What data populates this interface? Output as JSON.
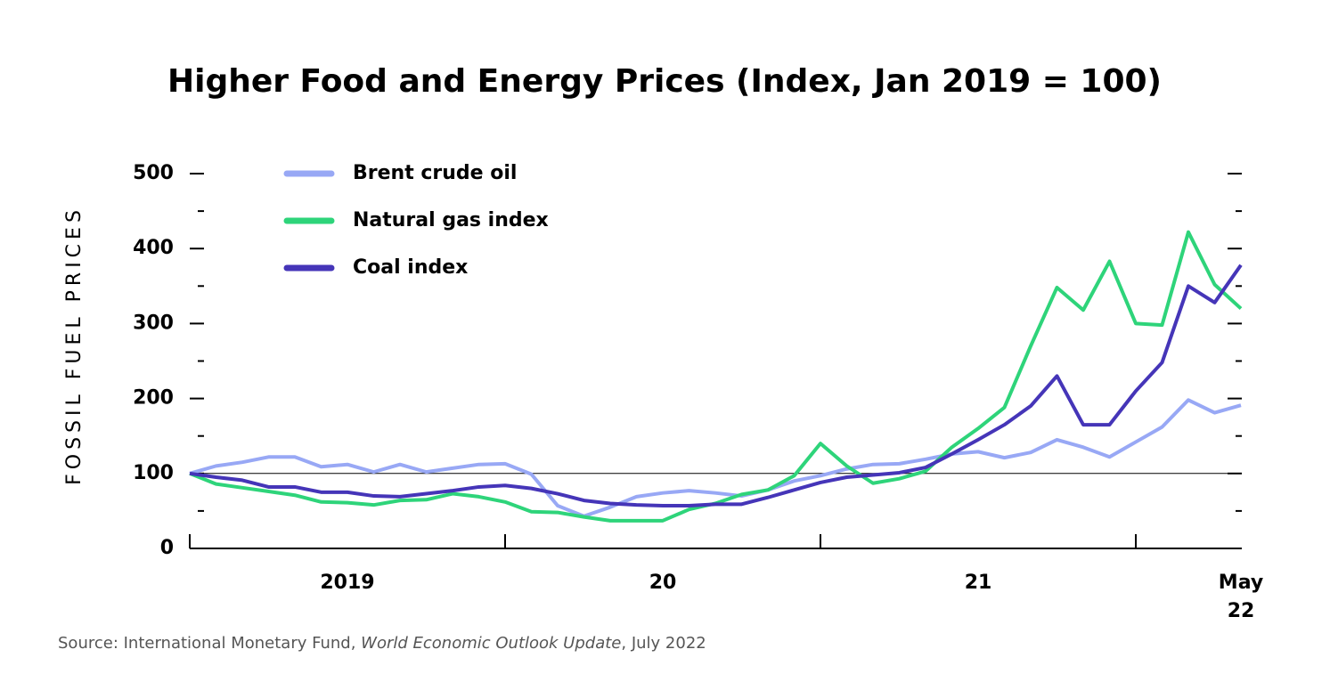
{
  "chart_data": {
    "type": "line",
    "title": "Higher Food and Energy Prices (Index, Jan 2019 = 100)",
    "y_label": "FOSSIL FUEL PRICES",
    "x": [
      0,
      1,
      2,
      3,
      4,
      5,
      6,
      7,
      8,
      9,
      10,
      11,
      12,
      13,
      14,
      15,
      16,
      17,
      18,
      19,
      20,
      21,
      22,
      23,
      24,
      25,
      26,
      27,
      28,
      29,
      30,
      31,
      32,
      33,
      34,
      35,
      36,
      37,
      38,
      39,
      40
    ],
    "series": [
      {
        "name": "Brent crude oil",
        "color": "#98a8f5",
        "values": [
          100,
          110,
          115,
          122,
          122,
          109,
          112,
          102,
          112,
          102,
          107,
          112,
          113,
          99,
          57,
          43,
          55,
          69,
          74,
          77,
          74,
          70,
          78,
          90,
          97,
          106,
          112,
          113,
          119,
          126,
          129,
          121,
          128,
          145,
          135,
          122,
          142,
          162,
          198,
          181,
          191
        ]
      },
      {
        "name": "Natural gas index",
        "color": "#2ed47a",
        "values": [
          100,
          86,
          81,
          76,
          71,
          62,
          61,
          58,
          64,
          65,
          73,
          69,
          62,
          49,
          48,
          42,
          37,
          37,
          37,
          52,
          60,
          72,
          78,
          97,
          140,
          110,
          87,
          93,
          103,
          135,
          160,
          188,
          270,
          348,
          318,
          383,
          300,
          298,
          422,
          352,
          320
        ]
      },
      {
        "name": "Coal index",
        "color": "#4535b8",
        "values": [
          100,
          95,
          91,
          82,
          82,
          75,
          75,
          70,
          69,
          73,
          77,
          82,
          84,
          80,
          73,
          64,
          60,
          58,
          57,
          57,
          59,
          59,
          68,
          78,
          88,
          95,
          98,
          101,
          108,
          126,
          145,
          165,
          190,
          230,
          165,
          165,
          210,
          248,
          350,
          328,
          378
        ]
      }
    ],
    "xlim": [
      0,
      40
    ],
    "xticks": [
      {
        "value": 6,
        "label": "2019"
      },
      {
        "value": 18,
        "label": "20"
      },
      {
        "value": 30,
        "label": "21"
      },
      {
        "value": 40,
        "label": "May\n22"
      }
    ],
    "x_dividers": [
      0,
      12,
      24,
      36
    ],
    "ylim": [
      0,
      500
    ],
    "yticks": [
      0,
      100,
      200,
      300,
      400,
      500
    ],
    "y_minor_ticks": [
      50,
      150,
      250,
      350,
      450
    ],
    "reference_line": 100,
    "legend": "top-left",
    "source": {
      "prefix": "Source: International Monetary Fund, ",
      "publication": "World Economic Outlook Update",
      "suffix": ", July 2022"
    }
  }
}
